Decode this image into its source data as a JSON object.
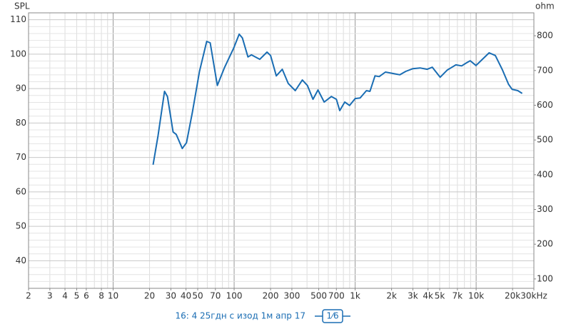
{
  "chart_data": {
    "type": "line",
    "y_label": "SPL",
    "y2_label": "ohm",
    "x_log": true,
    "grid": true,
    "xlim": [
      2,
      30000
    ],
    "ylim": [
      32,
      112
    ],
    "y2lim": [
      73,
      866
    ],
    "xticks": [
      2,
      3,
      4,
      5,
      6,
      8,
      10,
      20,
      30,
      40,
      50,
      70,
      100,
      200,
      300,
      500,
      700,
      {
        "value": 1000,
        "label": "1k"
      },
      {
        "value": 2000,
        "label": "2k"
      },
      {
        "value": 3000,
        "label": "3k"
      },
      {
        "value": 4000,
        "label": "4k"
      },
      {
        "value": 5000,
        "label": "5k"
      },
      {
        "value": 7000,
        "label": "7k"
      },
      {
        "value": 10000,
        "label": "10k"
      },
      {
        "value": 20000,
        "label": "20k"
      },
      {
        "value": 30000,
        "label": "30kHz"
      }
    ],
    "yticks": [
      40,
      50,
      60,
      70,
      80,
      90,
      100,
      110
    ],
    "y2ticks": [
      100,
      200,
      300,
      400,
      500,
      600,
      700,
      800
    ],
    "smoothing": "1⁄6",
    "series": [
      {
        "name": "16: 4 25гдн с изод  1м апр 17",
        "color": "#1a6db3",
        "x": [
          21.4,
          23.5,
          26.6,
          28.1,
          31.3,
          33.2,
          37.3,
          40.4,
          45.2,
          51.7,
          59.3,
          63.4,
          72.6,
          83,
          99.3,
          110,
          117,
          130,
          139,
          163,
          187,
          200,
          223,
          250,
          280,
          320,
          366,
          403,
          448,
          493,
          555,
          636,
          700,
          746,
          820,
          900,
          1000,
          1100,
          1240,
          1325,
          1460,
          1580,
          1780,
          2040,
          2340,
          2620,
          3000,
          3440,
          3940,
          4340,
          5040,
          5780,
          6800,
          7590,
          8340,
          8930,
          9970,
          11100,
          12800,
          14400,
          16500,
          18500,
          19800,
          22100,
          24000
        ],
        "values": [
          67.9,
          76.3,
          89.2,
          87.7,
          77.4,
          76.7,
          72.6,
          74.3,
          83.2,
          95.0,
          103.7,
          103.3,
          90.9,
          96.0,
          101.8,
          105.8,
          104.7,
          99.2,
          99.8,
          98.5,
          100.6,
          99.6,
          93.7,
          95.6,
          91.5,
          89.4,
          92.5,
          90.9,
          86.9,
          89.6,
          86.1,
          87.7,
          86.9,
          83.6,
          86.1,
          85.1,
          87.1,
          87.3,
          89.4,
          89.2,
          93.7,
          93.5,
          94.8,
          94.4,
          94.0,
          95.0,
          95.8,
          96.0,
          95.6,
          96.2,
          93.3,
          95.4,
          96.9,
          96.6,
          97.5,
          98.1,
          96.7,
          98.3,
          100.4,
          99.6,
          95.4,
          91.3,
          89.8,
          89.4,
          88.6
        ]
      }
    ]
  }
}
